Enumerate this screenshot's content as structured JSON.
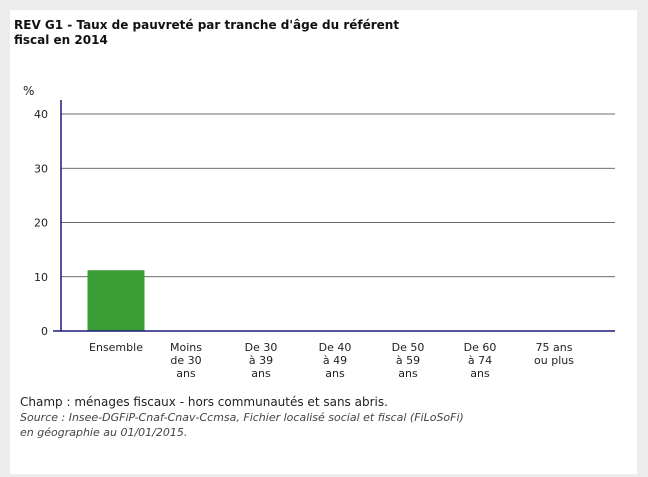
{
  "chart_data": {
    "type": "bar",
    "title": "REV G1 - Taux de pauvreté par tranche d'âge du référent fiscal en 2014",
    "ylabel": "%",
    "ylim": [
      0,
      40
    ],
    "yticks": [
      0,
      10,
      20,
      30,
      40
    ],
    "grid": true,
    "categories": [
      [
        "Ensemble"
      ],
      [
        "Moins",
        "de 30",
        "ans"
      ],
      [
        "De 30",
        "à 39",
        "ans"
      ],
      [
        "De 40",
        "à 49",
        "ans"
      ],
      [
        "De 50",
        "à 59",
        "ans"
      ],
      [
        "De 60",
        "à 74",
        "ans"
      ],
      [
        "75 ans",
        "ou plus"
      ]
    ],
    "values": [
      11.2,
      0,
      0,
      0,
      0,
      0,
      0
    ],
    "bar_color": "#3a9c35",
    "axis_color": "#1c1c7a"
  },
  "notes": {
    "champ": "Champ : ménages fiscaux - hors communautés et sans abris.",
    "source_line1": "Source : Insee-DGFiP-Cnaf-Cnav-Ccmsa, Fichier localisé social et fiscal (FiLoSoFi)",
    "source_line2": "en géographie au 01/01/2015."
  }
}
